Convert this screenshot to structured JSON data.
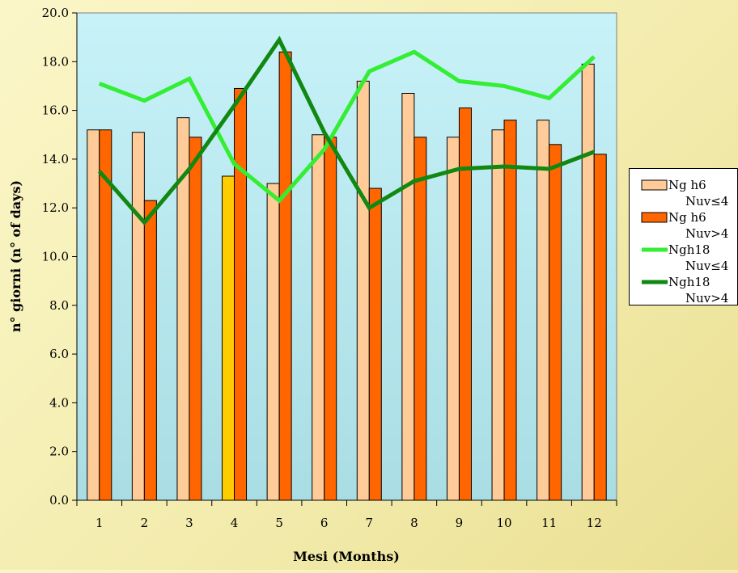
{
  "chart_data": {
    "type": "bar",
    "xlabel": "Mesi (Months)",
    "ylabel": "n° giorni  (n° of days)",
    "ylim": [
      0,
      20
    ],
    "yticks": [
      "0.0",
      "2.0",
      "4.0",
      "6.0",
      "8.0",
      "10.0",
      "12.0",
      "14.0",
      "16.0",
      "18.0",
      "20.0"
    ],
    "categories": [
      "1",
      "2",
      "3",
      "4",
      "5",
      "6",
      "7",
      "8",
      "9",
      "10",
      "11",
      "12"
    ],
    "grid": false,
    "legend_position": "right",
    "series": [
      {
        "name_line1": "Ng h6",
        "name_line2": "Nuv≤4",
        "kind": "bar",
        "color": "#ffcc99",
        "highlight_color": "#ffcc00",
        "highlight_index": 3,
        "values": [
          15.2,
          15.1,
          15.7,
          13.3,
          13.0,
          15.0,
          17.2,
          16.7,
          14.9,
          15.2,
          15.6,
          17.9
        ]
      },
      {
        "name_line1": "Ng h6",
        "name_line2": "Nuv>4",
        "kind": "bar",
        "color": "#ff6600",
        "values": [
          15.2,
          12.3,
          14.9,
          16.9,
          18.4,
          14.9,
          12.8,
          14.9,
          16.1,
          15.6,
          14.6,
          14.2
        ]
      },
      {
        "name_line1": "Ngh18",
        "name_line2": "Nuv≤4",
        "kind": "line",
        "color": "#33ee33",
        "values": [
          17.1,
          16.4,
          17.3,
          13.8,
          12.3,
          14.4,
          17.6,
          18.4,
          17.2,
          17.0,
          16.5,
          18.2
        ]
      },
      {
        "name_line1": "Ngh18",
        "name_line2": "Nuv>4",
        "kind": "line",
        "color": "#118811",
        "values": [
          13.5,
          11.4,
          13.6,
          16.2,
          18.9,
          15.1,
          12.0,
          13.1,
          13.6,
          13.7,
          13.6,
          14.3
        ]
      }
    ]
  },
  "colors": {
    "plot_bg_top": "#c7f2f8",
    "plot_bg_bottom": "#a9dde4"
  }
}
